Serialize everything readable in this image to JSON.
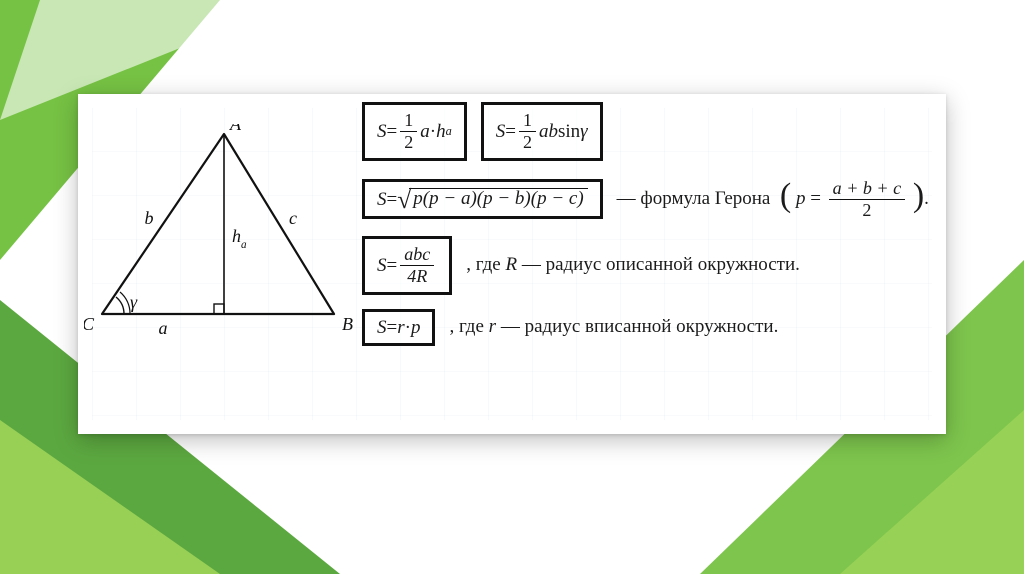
{
  "geometry": {
    "triangle": {
      "type": "triangle-diagram",
      "stroke": "#111111",
      "stroke_width": 2.2,
      "points": {
        "A": [
          140,
          10
        ],
        "B": [
          250,
          190
        ],
        "C": [
          18,
          190
        ]
      },
      "altitude_foot": [
        140,
        190
      ],
      "right_angle_marker_size": 10,
      "angle_gamma_at": "C",
      "labels": {
        "A": "A",
        "B": "B",
        "C": "C",
        "a": "a",
        "b": "b",
        "c": "c",
        "h": "h",
        "h_sub": "a",
        "gamma": "γ"
      },
      "label_fontsize": 18,
      "label_font": "italic serif"
    }
  },
  "formulas": {
    "f1": {
      "S": "S",
      "eq": " = ",
      "half_num": "1",
      "half_den": "2",
      "a": "a",
      "dot": " · ",
      "h": "h",
      "h_sub": "a"
    },
    "f2": {
      "S": "S",
      "eq": " = ",
      "half_num": "1",
      "half_den": "2",
      "ab": "ab",
      "sin": " sin ",
      "gamma": "γ"
    },
    "heron": {
      "S": "S",
      "eq": " = ",
      "radicand": "p(p − a)(p − b)(p − c)",
      "text": " — формула Герона",
      "p": "p",
      "peq": " = ",
      "num": "a + b + c",
      "den": "2"
    },
    "circum": {
      "S": "S",
      "eq": " = ",
      "num": "abc",
      "den": "4R",
      "text": ", где ",
      "R": "R",
      "tail": " — радиус описанной окружности."
    },
    "inrad": {
      "S": "S",
      "eq": " = ",
      "r": "r",
      "dot": " · ",
      "p": "p",
      "text": ", где ",
      "rr": "r",
      "tail": " — радиус вписанной окружности."
    }
  },
  "deco": {
    "green_light": "#9bd257",
    "green_mid": "#6fbf3a",
    "green_dark": "#4a9e2b",
    "white": "#ffffff"
  }
}
